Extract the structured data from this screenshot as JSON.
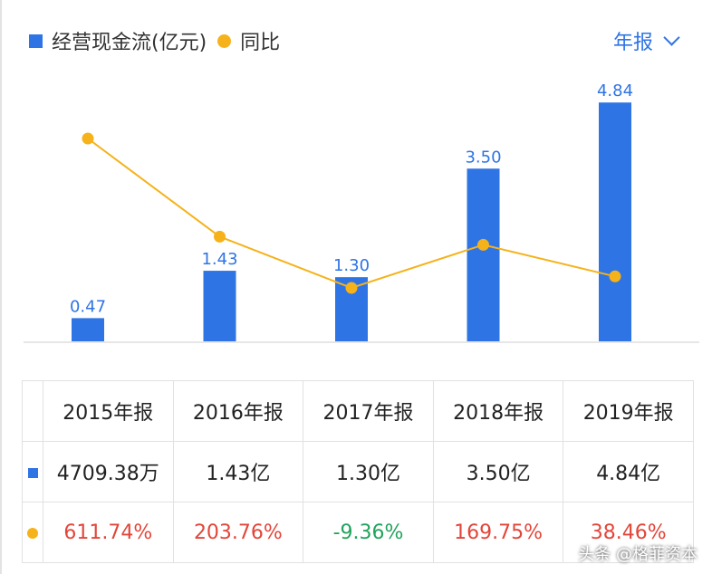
{
  "legend": {
    "bar_label": "经营现金流(亿元)",
    "line_label": "同比",
    "bar_color": "#2f74e5",
    "line_color": "#f5b21a"
  },
  "period_selector": {
    "label": "年报",
    "icon": "chevron-down-icon"
  },
  "chart_data": {
    "type": "bar",
    "categories": [
      "2015年报",
      "2016年报",
      "2017年报",
      "2018年报",
      "2019年报"
    ],
    "series": [
      {
        "name": "经营现金流(亿元)",
        "type": "bar",
        "values": [
          0.47,
          1.43,
          1.3,
          3.5,
          4.84
        ],
        "labels": [
          "0.47",
          "1.43",
          "1.30",
          "3.50",
          "4.84"
        ]
      },
      {
        "name": "同比",
        "type": "line",
        "values": [
          611.74,
          203.76,
          -9.36,
          169.75,
          38.46
        ]
      }
    ]
  },
  "table": {
    "headers": [
      "2015年报",
      "2016年报",
      "2017年报",
      "2018年报",
      "2019年报"
    ],
    "cash_flow_row": [
      "4709.38万",
      "1.43亿",
      "1.30亿",
      "3.50亿",
      "4.84亿"
    ],
    "yoy_row": [
      {
        "text": "611.74%",
        "tone": "red"
      },
      {
        "text": "203.76%",
        "tone": "red"
      },
      {
        "text": "-9.36%",
        "tone": "green"
      },
      {
        "text": "169.75%",
        "tone": "red"
      },
      {
        "text": "38.46%",
        "tone": "red"
      }
    ]
  },
  "watermark": "头条 @格菲资本"
}
